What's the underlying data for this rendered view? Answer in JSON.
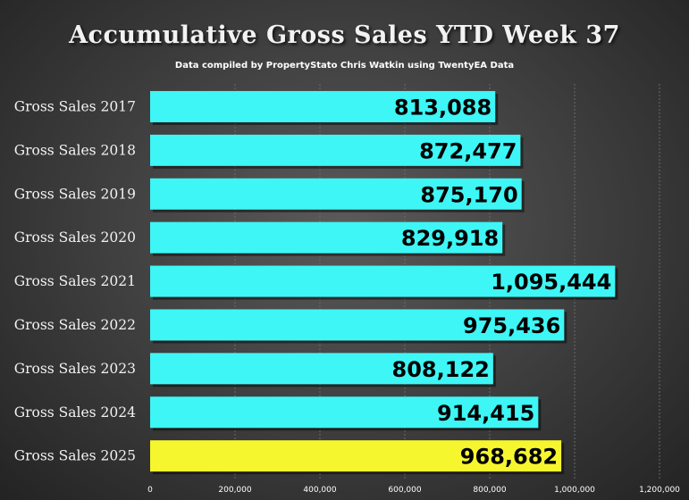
{
  "title": "Accumulative Gross Sales YTD Week 37",
  "subtitle": "Data compiled by PropertyStato Chris Watkin using TwentyEA Data",
  "chart_data": {
    "type": "bar",
    "orientation": "horizontal",
    "categories": [
      "Gross Sales 2017",
      "Gross Sales 2018",
      "Gross Sales 2019",
      "Gross Sales 2020",
      "Gross Sales 2021",
      "Gross Sales 2022",
      "Gross Sales 2023",
      "Gross Sales 2024",
      "Gross Sales 2025"
    ],
    "values": [
      813088,
      872477,
      875170,
      829918,
      1095444,
      975436,
      808122,
      914415,
      968682
    ],
    "value_labels": [
      "813,088",
      "872,477",
      "875,170",
      "829,918",
      "1,095,444",
      "975,436",
      "808,122",
      "914,415",
      "968,682"
    ],
    "colors": [
      "#3ef6f6",
      "#3ef6f6",
      "#3ef6f6",
      "#3ef6f6",
      "#3ef6f6",
      "#3ef6f6",
      "#3ef6f6",
      "#3ef6f6",
      "#f6f62e"
    ],
    "xlim": [
      0,
      1200000
    ],
    "x_ticks": [
      0,
      200000,
      400000,
      600000,
      800000,
      1000000,
      1200000
    ],
    "x_tick_labels": [
      "0",
      "200,000",
      "400,000",
      "600,000",
      "800,000",
      "1,000,000",
      "1,200,000"
    ],
    "grid": true,
    "legend": "none"
  }
}
